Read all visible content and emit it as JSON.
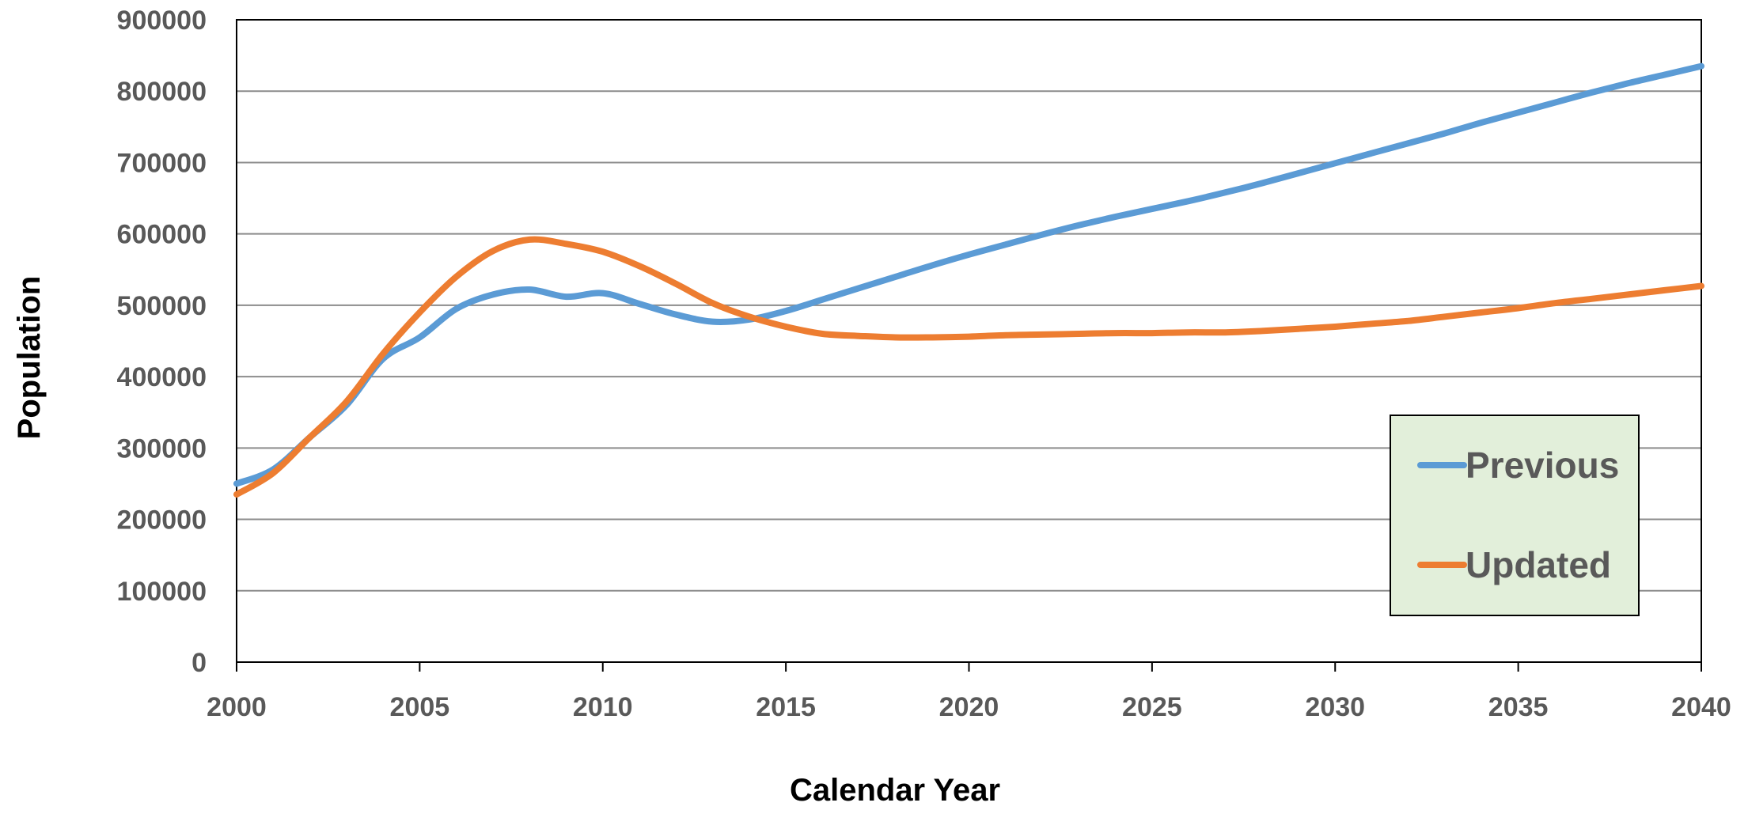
{
  "chart_data": {
    "type": "line",
    "title": "",
    "xlabel": "Calendar Year",
    "ylabel": "Population",
    "xlim": [
      2000,
      2040
    ],
    "ylim": [
      0,
      900000
    ],
    "x_ticks": [
      2000,
      2005,
      2010,
      2015,
      2020,
      2025,
      2030,
      2035,
      2040
    ],
    "y_ticks": [
      0,
      100000,
      200000,
      300000,
      400000,
      500000,
      600000,
      700000,
      800000,
      900000
    ],
    "grid": "horizontal",
    "legend_position": "bottom-right",
    "colors": {
      "Previous": "#5b9bd5",
      "Updated": "#ed7d31",
      "legend_background": "#e2efda"
    },
    "series": [
      {
        "name": "Previous",
        "x": [
          2000,
          2001,
          2002,
          2003,
          2004,
          2005,
          2006,
          2007,
          2008,
          2009,
          2010,
          2011,
          2012,
          2013,
          2014,
          2015,
          2016,
          2017,
          2018,
          2019,
          2020,
          2021,
          2022,
          2023,
          2024,
          2025,
          2026,
          2027,
          2028,
          2029,
          2030,
          2031,
          2032,
          2033,
          2034,
          2035,
          2036,
          2037,
          2038,
          2039,
          2040
        ],
        "values": [
          250000,
          270000,
          315000,
          360000,
          425000,
          455000,
          495000,
          515000,
          522000,
          512000,
          517000,
          502000,
          487000,
          477000,
          480000,
          492000,
          508000,
          524000,
          540000,
          556000,
          571000,
          585000,
          599000,
          612000,
          624000,
          635000,
          646000,
          658000,
          671000,
          685000,
          699000,
          713000,
          727000,
          741000,
          756000,
          770000,
          784000,
          798000,
          811000,
          823000,
          835000
        ]
      },
      {
        "name": "Updated",
        "x": [
          2000,
          2001,
          2002,
          2003,
          2004,
          2005,
          2006,
          2007,
          2008,
          2009,
          2010,
          2011,
          2012,
          2013,
          2014,
          2015,
          2016,
          2017,
          2018,
          2019,
          2020,
          2021,
          2022,
          2023,
          2024,
          2025,
          2026,
          2027,
          2028,
          2029,
          2030,
          2031,
          2032,
          2033,
          2034,
          2035,
          2036,
          2037,
          2038,
          2039,
          2040
        ],
        "values": [
          235000,
          265000,
          315000,
          365000,
          432000,
          490000,
          540000,
          576000,
          592000,
          586000,
          575000,
          555000,
          530000,
          503000,
          484000,
          470000,
          460000,
          457000,
          455000,
          455000,
          456000,
          458000,
          459000,
          460000,
          461000,
          461000,
          462000,
          462000,
          464000,
          467000,
          470000,
          474000,
          478000,
          484000,
          490000,
          496000,
          503000,
          509000,
          515000,
          521000,
          527000
        ]
      }
    ]
  }
}
